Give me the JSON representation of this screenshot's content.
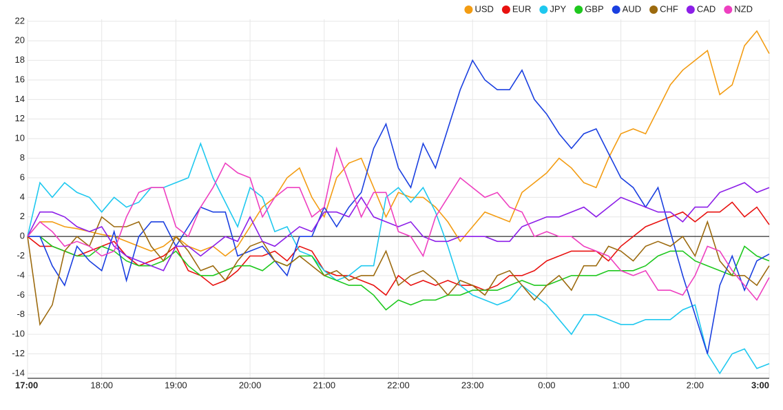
{
  "chart_data": {
    "type": "line",
    "categories": [
      "17:00",
      null,
      null,
      null,
      null,
      null,
      "18:00",
      null,
      null,
      null,
      null,
      null,
      "19:00",
      null,
      null,
      null,
      null,
      null,
      "20:00",
      null,
      null,
      null,
      null,
      null,
      "21:00",
      null,
      null,
      null,
      null,
      null,
      "22:00",
      null,
      null,
      null,
      null,
      null,
      "23:00",
      null,
      null,
      null,
      null,
      null,
      "0:00",
      null,
      null,
      null,
      null,
      null,
      "1:00",
      null,
      null,
      null,
      null,
      null,
      "2:00",
      null,
      null,
      null,
      null,
      null,
      "3:00"
    ],
    "series": [
      {
        "name": "USD",
        "color": "#f39c12",
        "values": [
          0,
          1.5,
          1.5,
          1,
          0.8,
          0.5,
          0.2,
          0,
          -0.5,
          -1,
          -1.5,
          -1,
          0,
          -1,
          -1.5,
          -1,
          -2,
          -1,
          1,
          3,
          4,
          6,
          7,
          4,
          2,
          6,
          7.5,
          8,
          5,
          2,
          4.5,
          4,
          4,
          3,
          1.5,
          -0.5,
          1,
          2.5,
          2,
          1.5,
          4.5,
          5.5,
          6.5,
          8,
          7,
          5.5,
          5,
          8,
          10.5,
          11,
          10.5,
          13,
          15.5,
          17,
          18,
          19,
          14.5,
          15.5,
          19.5,
          21,
          18.7
        ]
      },
      {
        "name": "EUR",
        "color": "#e8110f",
        "values": [
          0,
          -1,
          -1,
          -1.5,
          -2,
          -1.5,
          -1,
          -0.5,
          -2,
          -3,
          -2.5,
          -2,
          -1,
          -3.5,
          -4,
          -5,
          -4.5,
          -3.5,
          -2,
          -2,
          -1.5,
          -2.5,
          -1,
          -1.5,
          -3.5,
          -4,
          -4,
          -4.5,
          -5,
          -6,
          -4,
          -5,
          -4.5,
          -5,
          -4.5,
          -5,
          -5,
          -5.5,
          -5,
          -4,
          -4,
          -3.5,
          -2.5,
          -2,
          -1.5,
          -1.5,
          -1.5,
          -2.5,
          -1,
          0,
          1,
          1.5,
          2,
          2.5,
          1.5,
          2.5,
          2.5,
          3.5,
          2,
          3,
          1.2
        ]
      },
      {
        "name": "JPY",
        "color": "#1ec8ef",
        "values": [
          0,
          5.5,
          4,
          5.5,
          4.5,
          4,
          2.5,
          4,
          3,
          3.5,
          5,
          5,
          5.5,
          6,
          9.5,
          6,
          3.5,
          1,
          5,
          4,
          0.5,
          1,
          -1.5,
          -2,
          -3.5,
          -4.5,
          -4,
          -3,
          -3,
          4,
          5,
          3.5,
          5,
          2.5,
          -1,
          -5,
          -6,
          -6.5,
          -7,
          -6.5,
          -5,
          -6,
          -7,
          -8.5,
          -10,
          -8,
          -8,
          -8.5,
          -9,
          -9,
          -8.5,
          -8.5,
          -8.5,
          -7.5,
          -7,
          -12,
          -14,
          -12,
          -11.5,
          -13.5,
          -13
        ]
      },
      {
        "name": "GBP",
        "color": "#1ec81e",
        "values": [
          0,
          0,
          -1,
          -1.5,
          -2,
          -2,
          -1,
          -1.5,
          -2.5,
          -3,
          -3,
          -2.5,
          -1.5,
          -3,
          -4,
          -4,
          -3.5,
          -3,
          -3,
          -3.5,
          -2.5,
          -3,
          -2,
          -2,
          -4,
          -4.5,
          -5,
          -5,
          -6,
          -7.5,
          -6.5,
          -7,
          -6.5,
          -6.5,
          -6,
          -6,
          -5.5,
          -5.5,
          -5.5,
          -5,
          -4.5,
          -5,
          -5,
          -4.5,
          -4,
          -4,
          -4,
          -3.5,
          -3.5,
          -3.5,
          -3,
          -2,
          -1.5,
          -1.5,
          -2.5,
          -3,
          -3.5,
          -4,
          -1,
          -2,
          -2.5
        ]
      },
      {
        "name": "AUD",
        "color": "#1a3fe0",
        "values": [
          0,
          0,
          -3,
          -5,
          -1,
          -2.5,
          -3.5,
          0.5,
          -4.5,
          0,
          1.5,
          1.5,
          -1,
          1,
          3,
          2.5,
          2.5,
          -2,
          -1.5,
          -1,
          -2.5,
          -4,
          0,
          0,
          3,
          1,
          3,
          4.5,
          9,
          11.5,
          7,
          5,
          9.5,
          7,
          11,
          15,
          18,
          16,
          15,
          15,
          17,
          14,
          12.5,
          10.5,
          9,
          10.5,
          11,
          8.5,
          6,
          5,
          3,
          5,
          0.5,
          -4,
          -8,
          -12,
          -5,
          -2,
          -5.5,
          -2.5,
          -1.8
        ]
      },
      {
        "name": "CHF",
        "color": "#9c6a0e",
        "values": [
          0,
          -9,
          -7,
          -1.5,
          0,
          -1,
          2,
          1,
          1,
          1.5,
          -1,
          -2.5,
          0,
          -1.5,
          -3.5,
          -3,
          -4.5,
          -2.5,
          -1,
          -0.5,
          -2.5,
          -3,
          -2,
          -3,
          -4,
          -3.5,
          -4.5,
          -4,
          -4,
          -1.5,
          -5,
          -4,
          -3.5,
          -4.5,
          -6,
          -4.5,
          -5,
          -6,
          -4,
          -3.5,
          -5,
          -6.5,
          -5,
          -4,
          -5.5,
          -3,
          -3,
          -1,
          -1.5,
          -2.5,
          -1,
          -0.5,
          -1,
          0,
          -2,
          1.5,
          -2.5,
          -4,
          -4,
          -5,
          -3
        ]
      },
      {
        "name": "CAD",
        "color": "#8c1ee8",
        "values": [
          0,
          2.5,
          2.5,
          2,
          1,
          0.5,
          1,
          -1,
          -2,
          -2.5,
          -3,
          -3.5,
          -1,
          -1,
          -2,
          -1,
          0,
          -0.5,
          2,
          -0.5,
          -1,
          0,
          1,
          0.5,
          2.5,
          2.5,
          2,
          4,
          2,
          1.5,
          1,
          1.5,
          0,
          -0.5,
          -0.5,
          0,
          0,
          0,
          -0.5,
          -0.5,
          1,
          1.5,
          2,
          2,
          2.5,
          3,
          2,
          3,
          4,
          3.5,
          3,
          2.5,
          2.5,
          1.5,
          3,
          3,
          4.5,
          5,
          5.5,
          4.5,
          5
        ]
      },
      {
        "name": "NZD",
        "color": "#ee3fc0",
        "values": [
          0,
          1.5,
          0.5,
          -1,
          -0.5,
          -1,
          -2,
          -1.5,
          2,
          4.5,
          5,
          5,
          1,
          0,
          3,
          5,
          7.5,
          6.5,
          6,
          2,
          4,
          5,
          5,
          2,
          3,
          9,
          5.5,
          2,
          4.5,
          4.5,
          0.5,
          0,
          -2,
          2,
          4,
          6,
          5,
          4,
          4.5,
          3,
          2.5,
          0,
          0.5,
          0,
          0,
          -1,
          -1.5,
          -2,
          -3.5,
          -4,
          -3.5,
          -5.5,
          -5.5,
          -6,
          -4,
          -1,
          -1.5,
          -3.5,
          -5,
          -6.5,
          -4.2
        ]
      }
    ],
    "ylim": [
      -14.5,
      22.2
    ],
    "yticks": [
      -14,
      -12,
      -10,
      -8,
      -6,
      -4,
      -2,
      0,
      2,
      4,
      6,
      8,
      10,
      12,
      14,
      16,
      18,
      20,
      22
    ],
    "grid": true,
    "legend": "top-right"
  }
}
